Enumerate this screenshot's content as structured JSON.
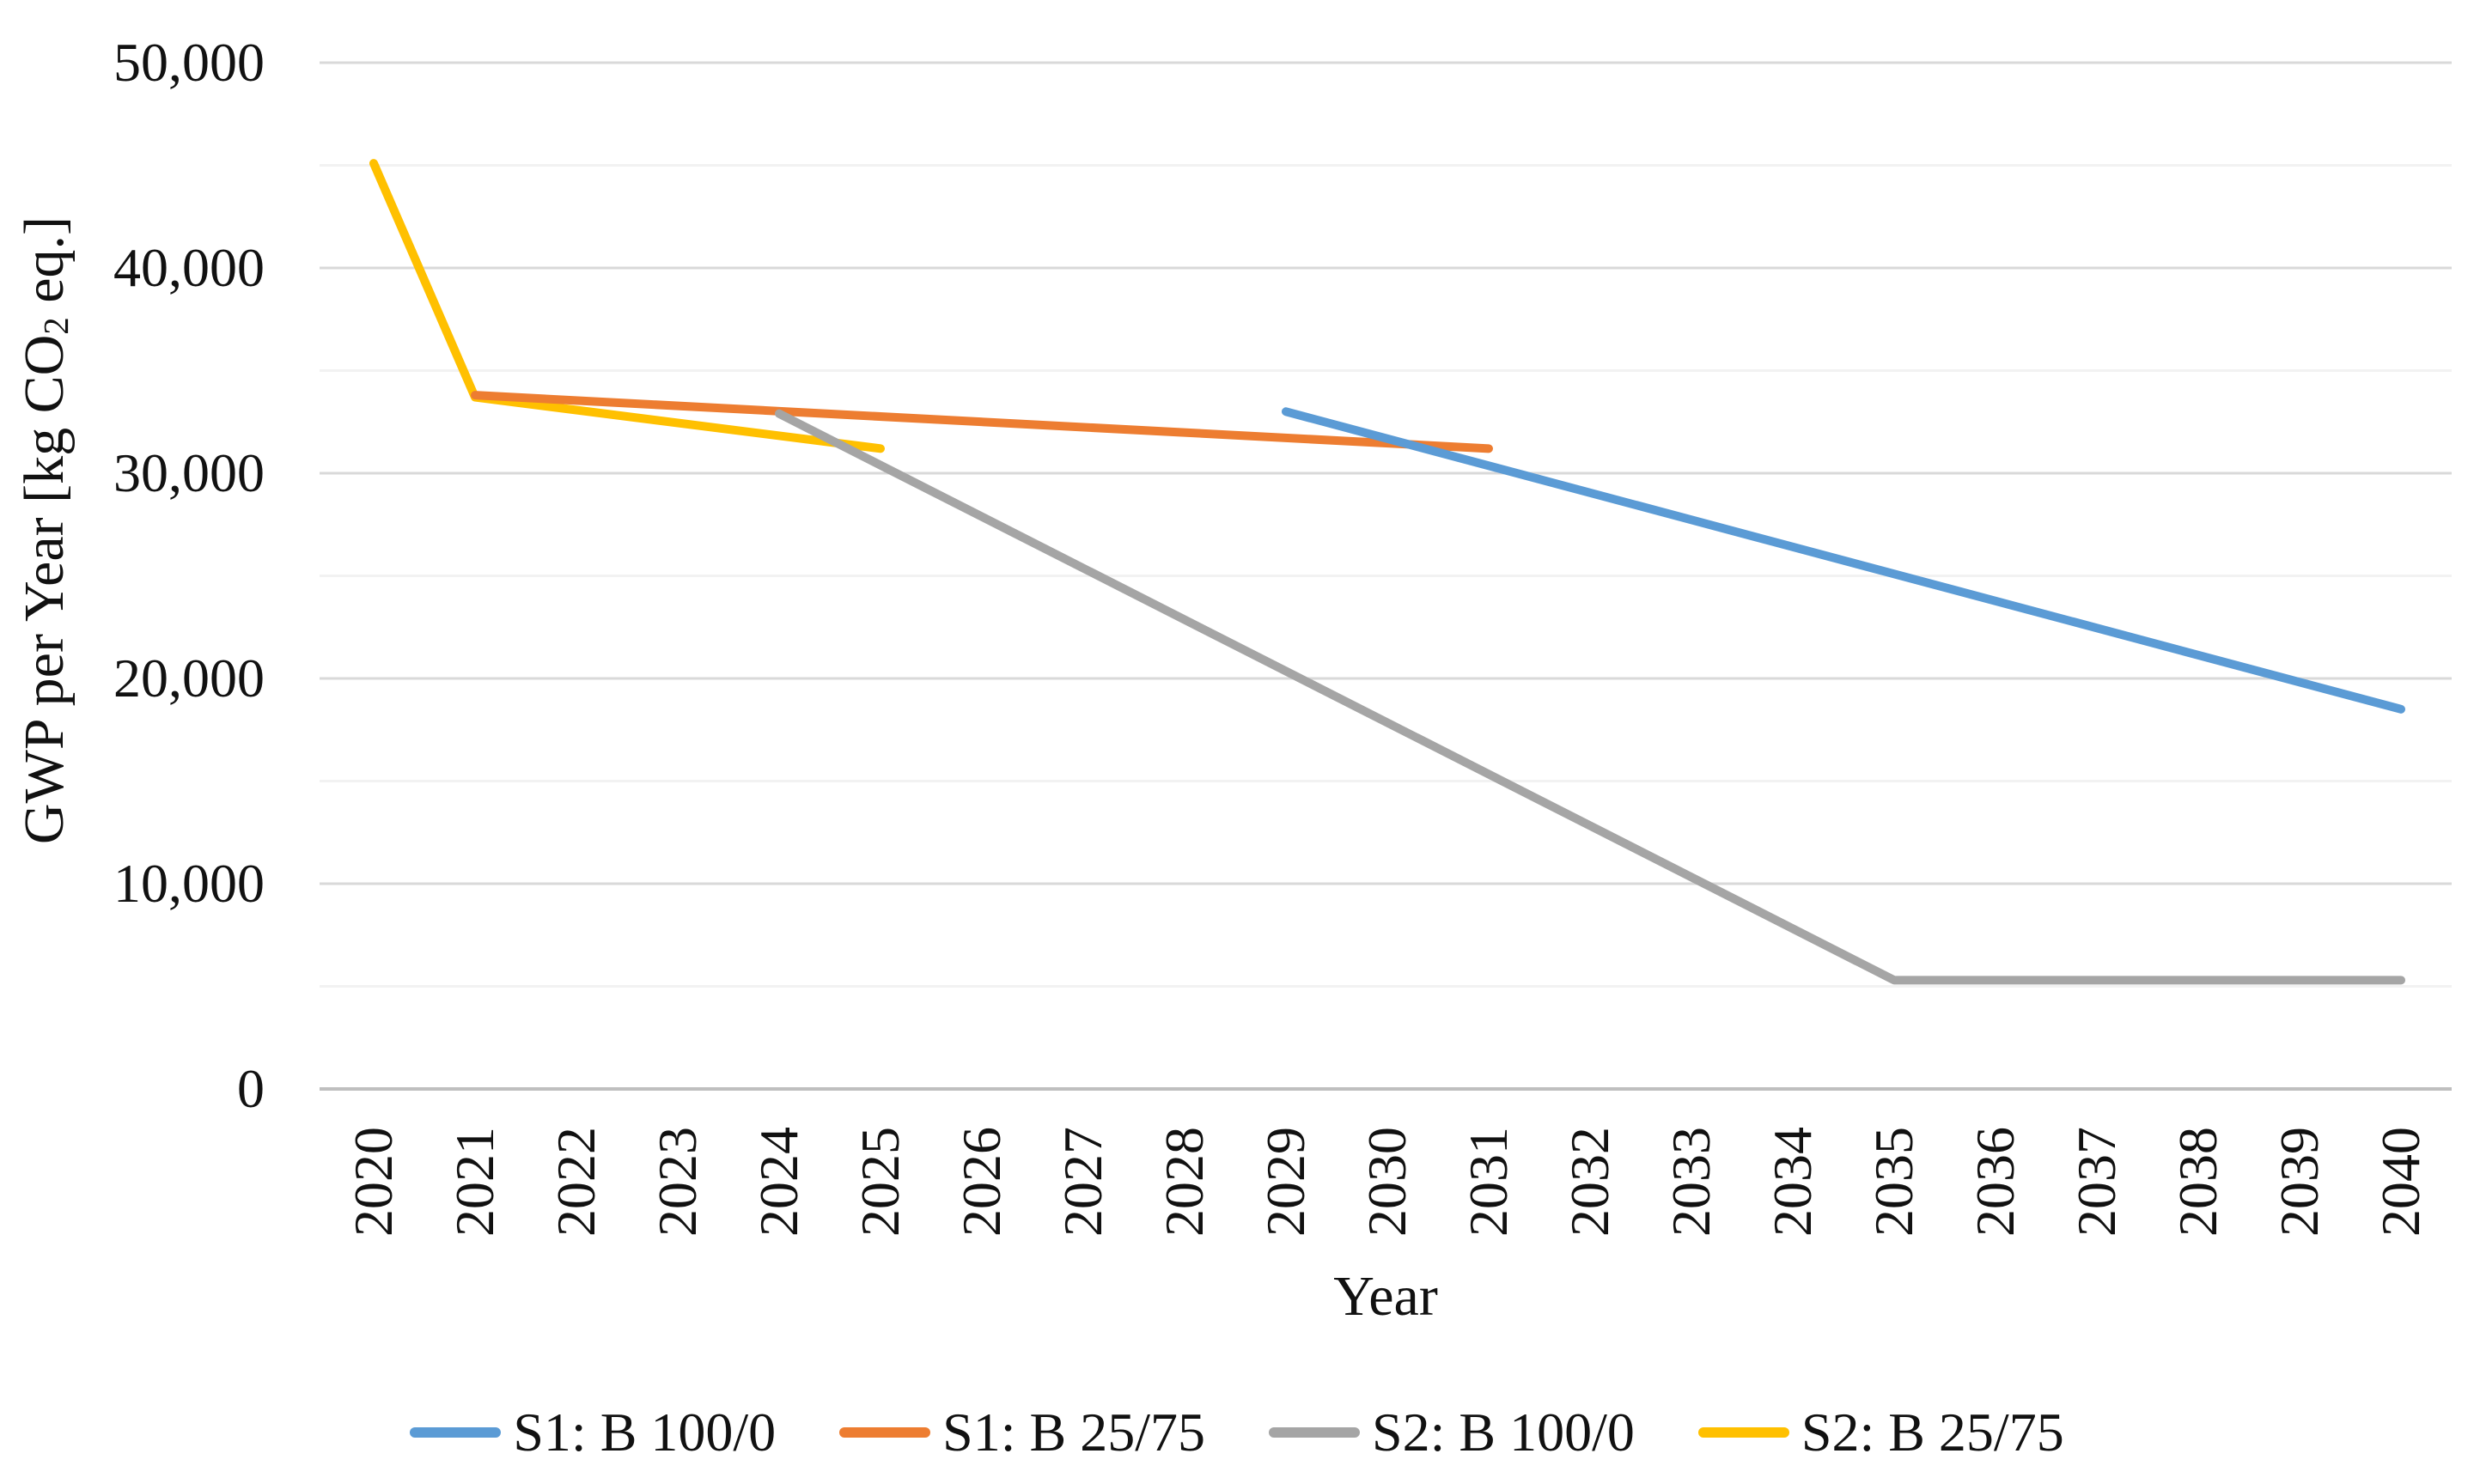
{
  "figure": {
    "background": "#FFFFFF",
    "text_color": "#111111",
    "gridline_major_color": "#D9D9D9",
    "gridline_minor_color": "#F2F2F2",
    "axis_line_color": "#BFBFBF"
  },
  "chart_data": {
    "type": "line",
    "title": "",
    "xlabel": "Year",
    "ylabel": "GWP per Year [kg CO2 eq.]",
    "ylabel_parts": {
      "pre": "GWP per Year [kg CO",
      "sub": "2",
      "post": " eq.]"
    },
    "x_range": [
      2020,
      2040
    ],
    "x_tick_step": 1,
    "x_tick_labels": [
      "2020",
      "2021",
      "2022",
      "2023",
      "2024",
      "2025",
      "2026",
      "2027",
      "2028",
      "2029",
      "2030",
      "2031",
      "2032",
      "2033",
      "2034",
      "2035",
      "2036",
      "2037",
      "2038",
      "2039",
      "2040"
    ],
    "ylim": [
      0,
      50000
    ],
    "y_major_step": 10000,
    "y_minor_step": 5000,
    "y_tick_labels": [
      "0",
      "10,000",
      "20,000",
      "30,000",
      "40,000",
      "50,000"
    ],
    "grid": "horizontal major + minor, no vertical gridlines",
    "legend_position": "bottom-center",
    "series": [
      {
        "name": "S1: B 100/0",
        "color": "#5B9BD5",
        "points": [
          [
            2029,
            33000
          ],
          [
            2040,
            18500
          ]
        ]
      },
      {
        "name": "S1: B 25/75",
        "color": "#ED7D31",
        "points": [
          [
            2021,
            33800
          ],
          [
            2031,
            31200
          ]
        ]
      },
      {
        "name": "S2: B 100/0",
        "color": "#A5A5A5",
        "points": [
          [
            2024,
            32900
          ],
          [
            2035,
            5300
          ],
          [
            2040,
            5300
          ]
        ]
      },
      {
        "name": "S2: B 25/75",
        "color": "#FFC000",
        "points": [
          [
            2020,
            45100
          ],
          [
            2021,
            33700
          ],
          [
            2025,
            31200
          ]
        ]
      }
    ],
    "draw_order": [
      3,
      1,
      2,
      0
    ],
    "line_width": 10
  }
}
